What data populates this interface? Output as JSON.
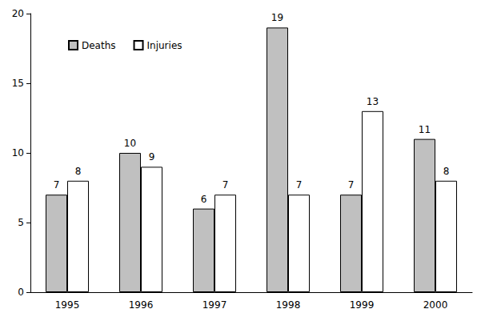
{
  "chart_data": {
    "type": "bar",
    "categories": [
      "1995",
      "1996",
      "1997",
      "1998",
      "1999",
      "2000"
    ],
    "series": [
      {
        "name": "Deaths",
        "color": "#c0c0c0",
        "values": [
          7,
          10,
          6,
          19,
          7,
          11
        ]
      },
      {
        "name": "Injuries",
        "color": "#ffffff",
        "values": [
          8,
          9,
          7,
          7,
          13,
          8
        ]
      }
    ],
    "ylim": [
      0,
      20
    ],
    "yticks": [
      0,
      5,
      10,
      15,
      20
    ],
    "grid": false,
    "data_labels": true,
    "legend": "upper-left"
  }
}
